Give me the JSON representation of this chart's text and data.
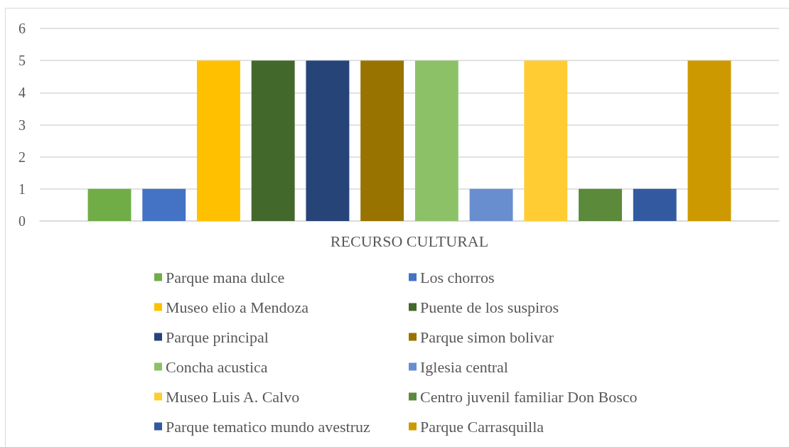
{
  "chart_data": {
    "type": "bar",
    "categories": [
      "RECURSO CULTURAL"
    ],
    "series": [
      {
        "name": "Parque mana dulce",
        "color": "#70ad47",
        "values": [
          1
        ]
      },
      {
        "name": "Los chorros",
        "color": "#4472c4",
        "values": [
          1
        ]
      },
      {
        "name": "Museo elio a Mendoza",
        "color": "#ffc000",
        "values": [
          5
        ]
      },
      {
        "name": "Puente de los suspiros",
        "color": "#43682b",
        "values": [
          5
        ]
      },
      {
        "name": "Parque principal",
        "color": "#264478",
        "values": [
          5
        ]
      },
      {
        "name": "Parque simon bolivar",
        "color": "#997300",
        "values": [
          5
        ]
      },
      {
        "name": "Concha acustica",
        "color": "#8cc168",
        "values": [
          5
        ]
      },
      {
        "name": "Iglesia central",
        "color": "#698ed0",
        "values": [
          1
        ]
      },
      {
        "name": "Museo Luis A. Calvo",
        "color": "#ffcd33",
        "values": [
          5
        ]
      },
      {
        "name": "Centro juvenil familiar Don Bosco",
        "color": "#5a8a3a",
        "values": [
          1
        ]
      },
      {
        "name": "Parque tematico mundo avestruz",
        "color": "#335aa1",
        "values": [
          1
        ]
      },
      {
        "name": "Parque Carrasquilla",
        "color": "#cc9a00",
        "values": [
          5
        ]
      }
    ],
    "ylim": [
      0,
      6
    ],
    "yticks": [
      0,
      1,
      2,
      3,
      4,
      5,
      6
    ],
    "grid": "y",
    "legend": "bottom"
  }
}
